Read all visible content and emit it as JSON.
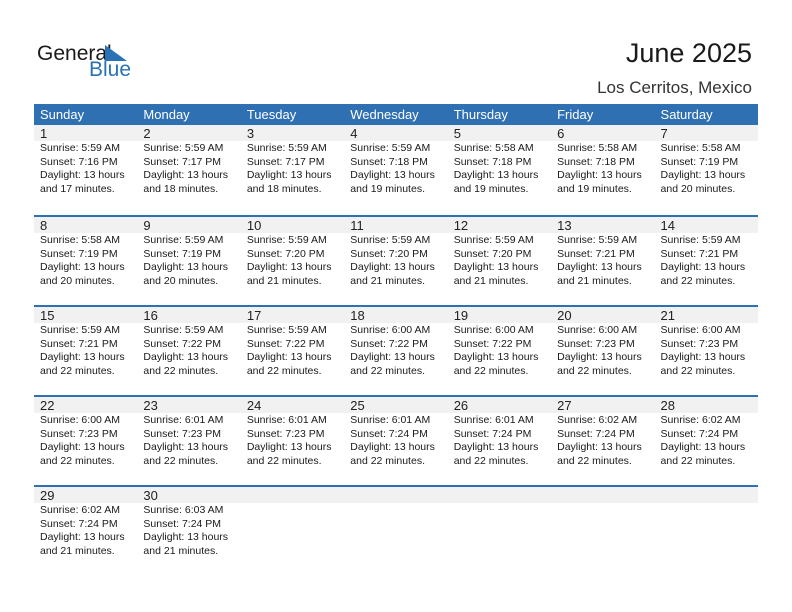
{
  "logo": {
    "line1": "General",
    "line2": "Blue"
  },
  "header": {
    "title": "June 2025",
    "location": "Los Cerritos, Mexico"
  },
  "weekdays": [
    "Sunday",
    "Monday",
    "Tuesday",
    "Wednesday",
    "Thursday",
    "Friday",
    "Saturday"
  ],
  "colors": {
    "accent": "#2f70b3",
    "band": "#f1f1f1"
  },
  "weeks": [
    [
      {
        "day": "1",
        "sunrise": "Sunrise: 5:59 AM",
        "sunset": "Sunset: 7:16 PM",
        "daylight1": "Daylight: 13 hours",
        "daylight2": "and 17 minutes."
      },
      {
        "day": "2",
        "sunrise": "Sunrise: 5:59 AM",
        "sunset": "Sunset: 7:17 PM",
        "daylight1": "Daylight: 13 hours",
        "daylight2": "and 18 minutes."
      },
      {
        "day": "3",
        "sunrise": "Sunrise: 5:59 AM",
        "sunset": "Sunset: 7:17 PM",
        "daylight1": "Daylight: 13 hours",
        "daylight2": "and 18 minutes."
      },
      {
        "day": "4",
        "sunrise": "Sunrise: 5:59 AM",
        "sunset": "Sunset: 7:18 PM",
        "daylight1": "Daylight: 13 hours",
        "daylight2": "and 19 minutes."
      },
      {
        "day": "5",
        "sunrise": "Sunrise: 5:58 AM",
        "sunset": "Sunset: 7:18 PM",
        "daylight1": "Daylight: 13 hours",
        "daylight2": "and 19 minutes."
      },
      {
        "day": "6",
        "sunrise": "Sunrise: 5:58 AM",
        "sunset": "Sunset: 7:18 PM",
        "daylight1": "Daylight: 13 hours",
        "daylight2": "and 19 minutes."
      },
      {
        "day": "7",
        "sunrise": "Sunrise: 5:58 AM",
        "sunset": "Sunset: 7:19 PM",
        "daylight1": "Daylight: 13 hours",
        "daylight2": "and 20 minutes."
      }
    ],
    [
      {
        "day": "8",
        "sunrise": "Sunrise: 5:58 AM",
        "sunset": "Sunset: 7:19 PM",
        "daylight1": "Daylight: 13 hours",
        "daylight2": "and 20 minutes."
      },
      {
        "day": "9",
        "sunrise": "Sunrise: 5:59 AM",
        "sunset": "Sunset: 7:19 PM",
        "daylight1": "Daylight: 13 hours",
        "daylight2": "and 20 minutes."
      },
      {
        "day": "10",
        "sunrise": "Sunrise: 5:59 AM",
        "sunset": "Sunset: 7:20 PM",
        "daylight1": "Daylight: 13 hours",
        "daylight2": "and 21 minutes."
      },
      {
        "day": "11",
        "sunrise": "Sunrise: 5:59 AM",
        "sunset": "Sunset: 7:20 PM",
        "daylight1": "Daylight: 13 hours",
        "daylight2": "and 21 minutes."
      },
      {
        "day": "12",
        "sunrise": "Sunrise: 5:59 AM",
        "sunset": "Sunset: 7:20 PM",
        "daylight1": "Daylight: 13 hours",
        "daylight2": "and 21 minutes."
      },
      {
        "day": "13",
        "sunrise": "Sunrise: 5:59 AM",
        "sunset": "Sunset: 7:21 PM",
        "daylight1": "Daylight: 13 hours",
        "daylight2": "and 21 minutes."
      },
      {
        "day": "14",
        "sunrise": "Sunrise: 5:59 AM",
        "sunset": "Sunset: 7:21 PM",
        "daylight1": "Daylight: 13 hours",
        "daylight2": "and 22 minutes."
      }
    ],
    [
      {
        "day": "15",
        "sunrise": "Sunrise: 5:59 AM",
        "sunset": "Sunset: 7:21 PM",
        "daylight1": "Daylight: 13 hours",
        "daylight2": "and 22 minutes."
      },
      {
        "day": "16",
        "sunrise": "Sunrise: 5:59 AM",
        "sunset": "Sunset: 7:22 PM",
        "daylight1": "Daylight: 13 hours",
        "daylight2": "and 22 minutes."
      },
      {
        "day": "17",
        "sunrise": "Sunrise: 5:59 AM",
        "sunset": "Sunset: 7:22 PM",
        "daylight1": "Daylight: 13 hours",
        "daylight2": "and 22 minutes."
      },
      {
        "day": "18",
        "sunrise": "Sunrise: 6:00 AM",
        "sunset": "Sunset: 7:22 PM",
        "daylight1": "Daylight: 13 hours",
        "daylight2": "and 22 minutes."
      },
      {
        "day": "19",
        "sunrise": "Sunrise: 6:00 AM",
        "sunset": "Sunset: 7:22 PM",
        "daylight1": "Daylight: 13 hours",
        "daylight2": "and 22 minutes."
      },
      {
        "day": "20",
        "sunrise": "Sunrise: 6:00 AM",
        "sunset": "Sunset: 7:23 PM",
        "daylight1": "Daylight: 13 hours",
        "daylight2": "and 22 minutes."
      },
      {
        "day": "21",
        "sunrise": "Sunrise: 6:00 AM",
        "sunset": "Sunset: 7:23 PM",
        "daylight1": "Daylight: 13 hours",
        "daylight2": "and 22 minutes."
      }
    ],
    [
      {
        "day": "22",
        "sunrise": "Sunrise: 6:00 AM",
        "sunset": "Sunset: 7:23 PM",
        "daylight1": "Daylight: 13 hours",
        "daylight2": "and 22 minutes."
      },
      {
        "day": "23",
        "sunrise": "Sunrise: 6:01 AM",
        "sunset": "Sunset: 7:23 PM",
        "daylight1": "Daylight: 13 hours",
        "daylight2": "and 22 minutes."
      },
      {
        "day": "24",
        "sunrise": "Sunrise: 6:01 AM",
        "sunset": "Sunset: 7:23 PM",
        "daylight1": "Daylight: 13 hours",
        "daylight2": "and 22 minutes."
      },
      {
        "day": "25",
        "sunrise": "Sunrise: 6:01 AM",
        "sunset": "Sunset: 7:24 PM",
        "daylight1": "Daylight: 13 hours",
        "daylight2": "and 22 minutes."
      },
      {
        "day": "26",
        "sunrise": "Sunrise: 6:01 AM",
        "sunset": "Sunset: 7:24 PM",
        "daylight1": "Daylight: 13 hours",
        "daylight2": "and 22 minutes."
      },
      {
        "day": "27",
        "sunrise": "Sunrise: 6:02 AM",
        "sunset": "Sunset: 7:24 PM",
        "daylight1": "Daylight: 13 hours",
        "daylight2": "and 22 minutes."
      },
      {
        "day": "28",
        "sunrise": "Sunrise: 6:02 AM",
        "sunset": "Sunset: 7:24 PM",
        "daylight1": "Daylight: 13 hours",
        "daylight2": "and 22 minutes."
      }
    ],
    [
      {
        "day": "29",
        "sunrise": "Sunrise: 6:02 AM",
        "sunset": "Sunset: 7:24 PM",
        "daylight1": "Daylight: 13 hours",
        "daylight2": "and 21 minutes."
      },
      {
        "day": "30",
        "sunrise": "Sunrise: 6:03 AM",
        "sunset": "Sunset: 7:24 PM",
        "daylight1": "Daylight: 13 hours",
        "daylight2": "and 21 minutes."
      },
      null,
      null,
      null,
      null,
      null
    ]
  ]
}
